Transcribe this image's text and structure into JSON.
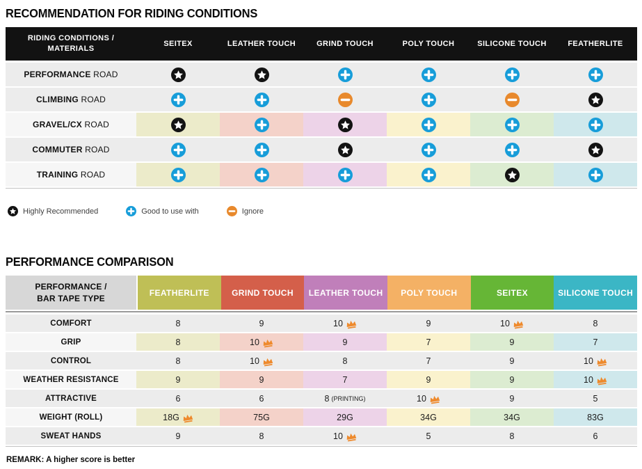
{
  "colors": {
    "header_bar": "#121212",
    "row_gray": "#ececec",
    "row_label_light": "#f6f6f6",
    "corner2_bg": "#d7d7d7",
    "star": "#131313",
    "plus": "#179dd9",
    "minus": "#e8892c",
    "crown": "#ee8a2d"
  },
  "tints_by_column_position": [
    "#ecebca",
    "#f4d2c9",
    "#edd3e8",
    "#faf2cd",
    "#dcecd1",
    "#cfe8ec"
  ],
  "table1": {
    "title": "RECOMMENDATION FOR RIDING CONDITIONS",
    "corner_line1": "RIDING CONDITIONS /",
    "corner_line2": "MATERIALS",
    "columns": [
      "SEITEX",
      "LEATHER TOUCH",
      "GRIND TOUCH",
      "POLY TOUCH",
      "SILICONE TOUCH",
      "FEATHERLITE"
    ],
    "rows": [
      {
        "label_bold": "PERFORMANCE",
        "label_rest": "ROAD",
        "tinted": false,
        "cells": [
          "star",
          "star",
          "plus",
          "plus",
          "plus",
          "plus"
        ]
      },
      {
        "label_bold": "CLIMBING",
        "label_rest": "ROAD",
        "tinted": false,
        "cells": [
          "plus",
          "plus",
          "minus",
          "plus",
          "minus",
          "star"
        ]
      },
      {
        "label_bold": "GRAVEL/CX",
        "label_rest": "ROAD",
        "tinted": true,
        "cells": [
          "star",
          "plus",
          "star",
          "plus",
          "plus",
          "plus"
        ]
      },
      {
        "label_bold": "COMMUTER",
        "label_rest": "ROAD",
        "tinted": false,
        "cells": [
          "plus",
          "plus",
          "star",
          "plus",
          "plus",
          "star"
        ]
      },
      {
        "label_bold": "TRAINING",
        "label_rest": "ROAD",
        "tinted": true,
        "cells": [
          "plus",
          "plus",
          "plus",
          "plus",
          "star",
          "plus"
        ]
      }
    ],
    "legend": [
      {
        "icon": "star",
        "label": "Highly Recommended"
      },
      {
        "icon": "plus",
        "label": "Good to use with"
      },
      {
        "icon": "minus",
        "label": "Ignore"
      }
    ]
  },
  "table2": {
    "title": "PERFORMANCE COMPARISON",
    "corner_line1": "PERFORMANCE /",
    "corner_line2": "BAR TAPE TYPE",
    "columns": [
      {
        "label": "FEATHERLITE",
        "color": "#bfbf56"
      },
      {
        "label": "GRIND TOUCH",
        "color": "#d45f4a"
      },
      {
        "label": "LEATHER TOUCH",
        "color": "#c07fba"
      },
      {
        "label": "POLY TOUCH",
        "color": "#f4b165"
      },
      {
        "label": "SEITEX",
        "color": "#66b636"
      },
      {
        "label": "SILICONE TOUCH",
        "color": "#3bb6c5"
      }
    ],
    "rows": [
      {
        "label": "COMFORT",
        "tinted": false,
        "cells": [
          {
            "text": "8"
          },
          {
            "text": "9"
          },
          {
            "text": "10",
            "crown": true
          },
          {
            "text": "9"
          },
          {
            "text": "10",
            "crown": true
          },
          {
            "text": "8"
          }
        ]
      },
      {
        "label": "GRIP",
        "tinted": true,
        "cells": [
          {
            "text": "8"
          },
          {
            "text": "10",
            "crown": true
          },
          {
            "text": "9"
          },
          {
            "text": "7"
          },
          {
            "text": "9"
          },
          {
            "text": "7"
          }
        ]
      },
      {
        "label": "CONTROL",
        "tinted": false,
        "cells": [
          {
            "text": "8"
          },
          {
            "text": "10",
            "crown": true
          },
          {
            "text": "8"
          },
          {
            "text": "7"
          },
          {
            "text": "9"
          },
          {
            "text": "10",
            "crown": true
          }
        ]
      },
      {
        "label": "WEATHER RESISTANCE",
        "tinted": true,
        "cells": [
          {
            "text": "9"
          },
          {
            "text": "9"
          },
          {
            "text": "7"
          },
          {
            "text": "9"
          },
          {
            "text": "9"
          },
          {
            "text": "10",
            "crown": true
          }
        ]
      },
      {
        "label": "ATTRACTIVE",
        "tinted": false,
        "cells": [
          {
            "text": "6"
          },
          {
            "text": "6"
          },
          {
            "text": "8",
            "suffix": "(PRINTING)"
          },
          {
            "text": "10",
            "crown": true
          },
          {
            "text": "9"
          },
          {
            "text": "5"
          }
        ]
      },
      {
        "label": "WEIGHT (ROLL)",
        "tinted": true,
        "cells": [
          {
            "text": "18G",
            "crown": true
          },
          {
            "text": "75G"
          },
          {
            "text": "29G"
          },
          {
            "text": "34G"
          },
          {
            "text": "34G"
          },
          {
            "text": "83G"
          }
        ]
      },
      {
        "label": "SWEAT HANDS",
        "tinted": false,
        "cells": [
          {
            "text": "9"
          },
          {
            "text": "8"
          },
          {
            "text": "10",
            "crown": true
          },
          {
            "text": "5"
          },
          {
            "text": "8"
          },
          {
            "text": "6"
          }
        ]
      }
    ],
    "remark": "REMARK: A higher score is better"
  }
}
